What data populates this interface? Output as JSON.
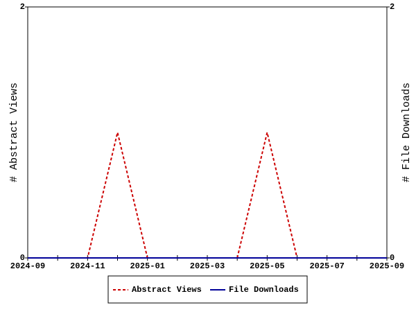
{
  "chart_data": {
    "type": "line",
    "categories": [
      "2024-09",
      null,
      "2024-11",
      null,
      "2025-01",
      null,
      "2025-03",
      null,
      "2025-05",
      null,
      "2025-07",
      null,
      "2025-09"
    ],
    "series": [
      {
        "name": "Abstract Views",
        "color": "#cc0000",
        "dashed": true,
        "values": [
          0,
          0,
          0,
          1,
          0,
          0,
          0,
          0,
          1,
          0,
          0,
          0,
          0
        ]
      },
      {
        "name": "File Downloads",
        "color": "#000099",
        "dashed": false,
        "axis": "y2",
        "values": [
          0,
          0,
          0,
          0,
          0,
          0,
          0,
          0,
          0,
          0,
          0,
          0,
          0
        ]
      }
    ],
    "y_label": "# Abstract Views",
    "y2_label": "# File Downloads",
    "ylim": [
      0,
      2
    ],
    "yticks": [
      0,
      2
    ],
    "y2lim": [
      0,
      2
    ],
    "y2ticks": [
      0,
      2
    ]
  }
}
